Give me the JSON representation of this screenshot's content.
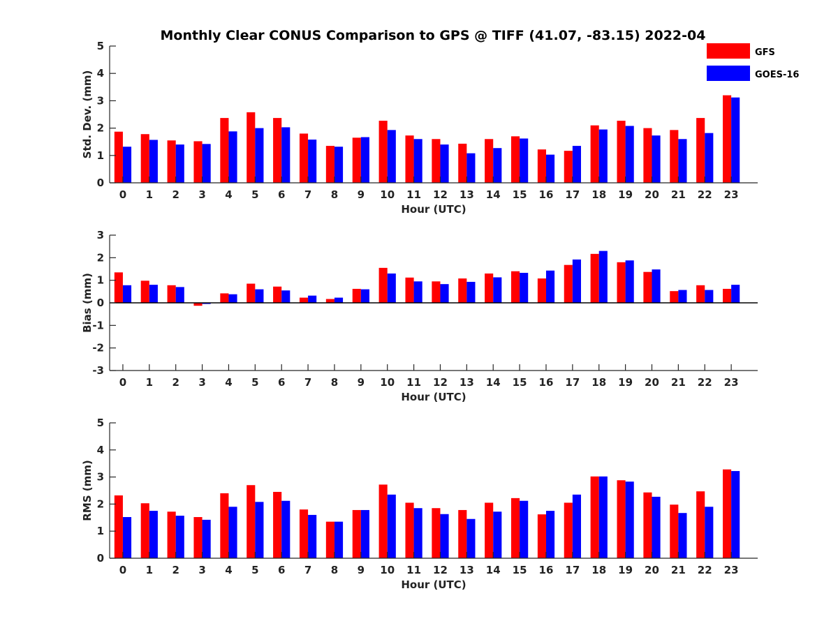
{
  "title": "Monthly Clear CONUS Comparison to GPS @ TIFF (41.07, -83.15) 2022-04",
  "legend": {
    "placement": "top-right",
    "entries": [
      {
        "name": "GFS",
        "color": "#ff0000"
      },
      {
        "name": "GOES-16",
        "color": "#0000ff"
      }
    ]
  },
  "chart_data": [
    {
      "type": "bar",
      "ylabel": "Std. Dev. (mm)",
      "xlabel": "Hour (UTC)",
      "ylim": [
        0,
        5
      ],
      "yticks": [
        0,
        1,
        2,
        3,
        4,
        5
      ],
      "categories": [
        "0",
        "1",
        "2",
        "3",
        "4",
        "5",
        "6",
        "7",
        "8",
        "9",
        "10",
        "11",
        "12",
        "13",
        "14",
        "15",
        "16",
        "17",
        "18",
        "19",
        "20",
        "21",
        "22",
        "23"
      ],
      "series": [
        {
          "name": "GFS",
          "color": "#ff0000",
          "values": [
            1.87,
            1.78,
            1.55,
            1.52,
            2.37,
            2.58,
            2.37,
            1.8,
            1.35,
            1.65,
            2.27,
            1.73,
            1.6,
            1.43,
            1.6,
            1.7,
            1.22,
            1.17,
            2.1,
            2.27,
            2.0,
            1.93,
            2.37,
            3.2
          ]
        },
        {
          "name": "GOES-16",
          "color": "#0000ff",
          "values": [
            1.32,
            1.57,
            1.4,
            1.42,
            1.88,
            2.0,
            2.03,
            1.58,
            1.32,
            1.67,
            1.93,
            1.6,
            1.4,
            1.08,
            1.27,
            1.62,
            1.03,
            1.35,
            1.95,
            2.08,
            1.73,
            1.6,
            1.82,
            3.12
          ]
        }
      ]
    },
    {
      "type": "bar",
      "ylabel": "Bias (mm)",
      "xlabel": "Hour (UTC)",
      "ylim": [
        -3,
        3
      ],
      "yticks": [
        -3,
        -2,
        -1,
        0,
        1,
        2,
        3
      ],
      "zero_line": true,
      "categories": [
        "0",
        "1",
        "2",
        "3",
        "4",
        "5",
        "6",
        "7",
        "8",
        "9",
        "10",
        "11",
        "12",
        "13",
        "14",
        "15",
        "16",
        "17",
        "18",
        "19",
        "20",
        "21",
        "22",
        "23"
      ],
      "series": [
        {
          "name": "GFS",
          "color": "#ff0000",
          "values": [
            1.35,
            0.98,
            0.78,
            -0.13,
            0.42,
            0.85,
            0.72,
            0.23,
            0.17,
            0.62,
            1.55,
            1.12,
            0.95,
            1.08,
            1.3,
            1.4,
            1.08,
            1.68,
            2.17,
            1.8,
            1.37,
            0.52,
            0.78,
            0.62
          ]
        },
        {
          "name": "GOES-16",
          "color": "#0000ff",
          "values": [
            0.78,
            0.8,
            0.7,
            -0.05,
            0.38,
            0.6,
            0.55,
            0.32,
            0.23,
            0.6,
            1.3,
            0.95,
            0.83,
            0.93,
            1.13,
            1.33,
            1.43,
            1.92,
            2.3,
            1.88,
            1.48,
            0.57,
            0.57,
            0.8
          ]
        }
      ]
    },
    {
      "type": "bar",
      "ylabel": "RMS (mm)",
      "xlabel": "Hour (UTC)",
      "ylim": [
        0,
        5
      ],
      "yticks": [
        0,
        1,
        2,
        3,
        4,
        5
      ],
      "categories": [
        "0",
        "1",
        "2",
        "3",
        "4",
        "5",
        "6",
        "7",
        "8",
        "9",
        "10",
        "11",
        "12",
        "13",
        "14",
        "15",
        "16",
        "17",
        "18",
        "19",
        "20",
        "21",
        "22",
        "23"
      ],
      "series": [
        {
          "name": "GFS",
          "color": "#ff0000",
          "values": [
            2.32,
            2.03,
            1.72,
            1.52,
            2.4,
            2.7,
            2.45,
            1.8,
            1.35,
            1.78,
            2.72,
            2.05,
            1.85,
            1.78,
            2.05,
            2.22,
            1.62,
            2.05,
            3.02,
            2.88,
            2.43,
            1.98,
            2.47,
            3.28
          ]
        },
        {
          "name": "GOES-16",
          "color": "#0000ff",
          "values": [
            1.52,
            1.75,
            1.57,
            1.42,
            1.9,
            2.08,
            2.12,
            1.6,
            1.35,
            1.78,
            2.35,
            1.85,
            1.63,
            1.45,
            1.72,
            2.12,
            1.75,
            2.35,
            3.02,
            2.83,
            2.27,
            1.67,
            1.9,
            3.22
          ]
        }
      ]
    }
  ]
}
